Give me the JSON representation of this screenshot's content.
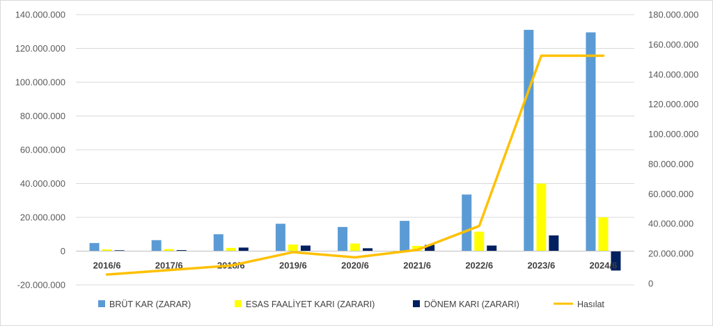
{
  "chart_data": {
    "type": "bar",
    "categories": [
      "2016/6",
      "2017/6",
      "2018/6",
      "2019/6",
      "2020/6",
      "2021/6",
      "2022/6",
      "2023/6",
      "2024/6"
    ],
    "series": [
      {
        "name": "BRÜT KAR (ZARAR)",
        "type": "bar",
        "axis": "left",
        "color": "#5b9bd5",
        "values": [
          4800000,
          6500000,
          10000000,
          16200000,
          14300000,
          17900000,
          33500000,
          131000000,
          129500000
        ]
      },
      {
        "name": "ESAS FAALİYET KARI (ZARARI)",
        "type": "bar",
        "axis": "left",
        "color": "#ffff00",
        "values": [
          1000000,
          1200000,
          1900000,
          3900000,
          4500000,
          3100000,
          11500000,
          40000000,
          20000000
        ]
      },
      {
        "name": "DÖNEM KARI (ZARARI)",
        "type": "bar",
        "axis": "left",
        "color": "#002060",
        "values": [
          500000,
          600000,
          2100000,
          3300000,
          1700000,
          3700000,
          3300000,
          9300000,
          -11500000
        ]
      },
      {
        "name": "Hasılat",
        "type": "line",
        "axis": "right",
        "color": "#ffc000",
        "values": [
          6000000,
          9000000,
          12000000,
          21000000,
          17500000,
          22500000,
          38500000,
          152500000,
          152500000
        ]
      }
    ],
    "y_left": {
      "min": -20000000,
      "max": 140000000,
      "step": 20000000,
      "tick_labels": [
        "-20.000.000",
        "0",
        "20.000.000",
        "40.000.000",
        "60.000.000",
        "80.000.000",
        "100.000.000",
        "120.000.000",
        "140.000.000"
      ]
    },
    "y_right": {
      "min": 0,
      "max": 180000000,
      "step": 20000000,
      "tick_labels": [
        "0",
        "20.000.000",
        "40.000.000",
        "60.000.000",
        "80.000.000",
        "100.000.000",
        "120.000.000",
        "140.000.000",
        "160.000.000",
        "180.000.000"
      ]
    },
    "gridlines": true,
    "legend_position": "bottom"
  }
}
